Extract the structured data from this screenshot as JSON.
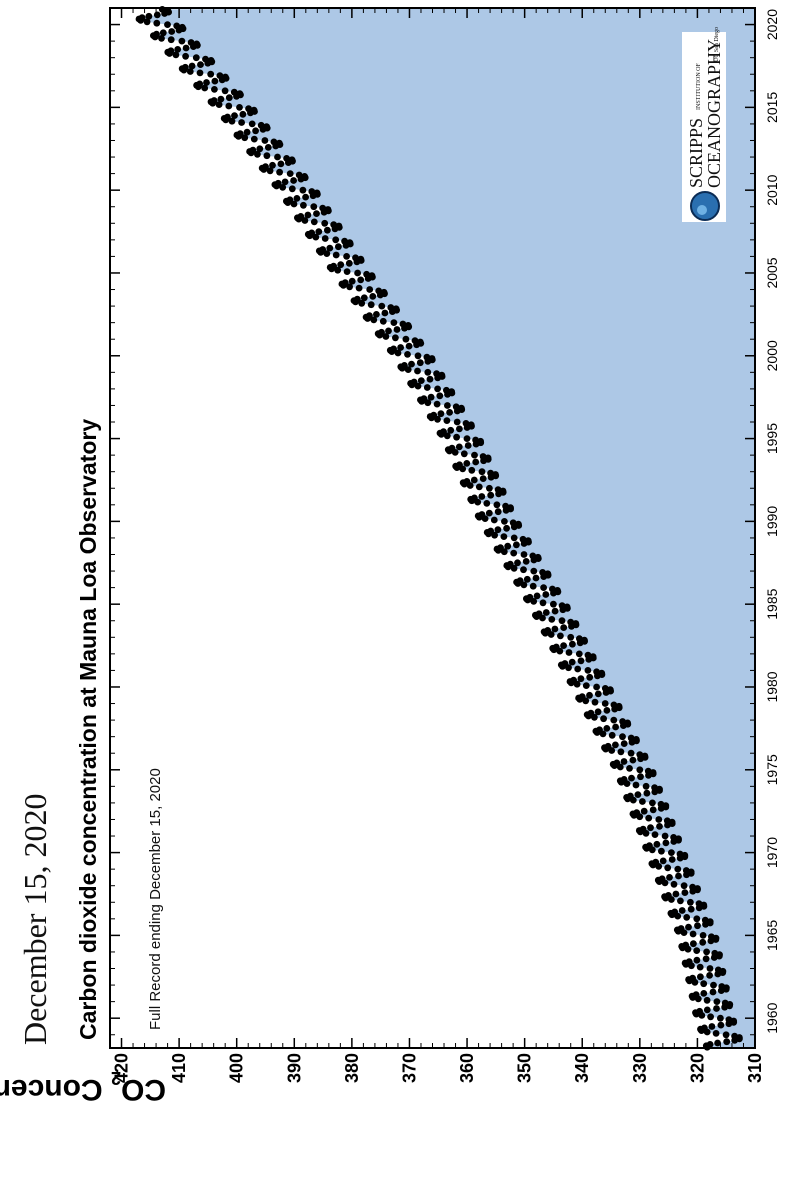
{
  "date_heading": "December 15, 2020",
  "logo": {
    "line1": "SCRIPPS",
    "line1_small": "INSTITUTION OF",
    "line2": "OCEANOGRAPHY",
    "line2_small": "UC San Diego"
  },
  "colors": {
    "fill": "#adc8e6",
    "points": "#000000",
    "frame": "#000000"
  },
  "chart_data": {
    "type": "scatter",
    "title": "Carbon dioxide concentration at Mauna Loa Observatory",
    "subtitle": "Full Record ending December 15, 2020",
    "ylabel_main": "CO",
    "ylabel_sub": "2",
    "ylabel_rest": " Concentration (ppm)",
    "xlabel": "",
    "xlim": [
      1958.2,
      2021.0
    ],
    "ylim": [
      310,
      422
    ],
    "xticks": [
      1960,
      1965,
      1970,
      1975,
      1980,
      1985,
      1990,
      1995,
      2000,
      2005,
      2010,
      2015,
      2020
    ],
    "yticks": [
      310,
      320,
      330,
      340,
      350,
      360,
      370,
      380,
      390,
      400,
      410,
      420
    ],
    "area_fill_below": true,
    "seasonal_amplitude_ppm": 3.2,
    "annual_mean_ppm": {
      "x": [
        1959,
        1960,
        1965,
        1970,
        1975,
        1980,
        1985,
        1990,
        1995,
        2000,
        2005,
        2010,
        2015,
        2020
      ],
      "y": [
        316,
        317,
        320,
        325.5,
        331,
        338.5,
        346,
        354.5,
        361,
        369.5,
        380,
        389.5,
        400.5,
        413
      ]
    },
    "series": [
      {
        "values_note": "monthly measurements, seasonal cycle around annual mean"
      }
    ]
  }
}
